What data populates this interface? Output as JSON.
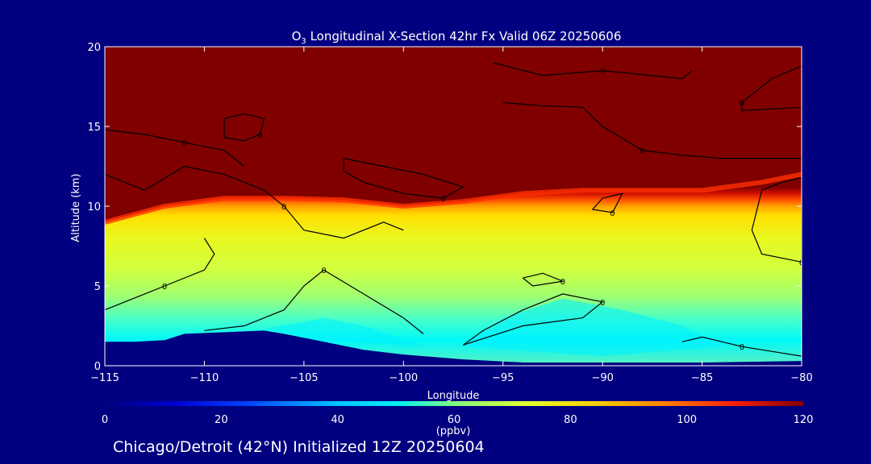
{
  "title": {
    "prefix": "O",
    "subscript": "3",
    "rest": " Longitudinal X-Section 42hr  Fx Valid 06Z 20250606"
  },
  "footer": "Chicago/Detroit (42°N) Initialized 12Z 20250604",
  "colorbar": {
    "unit_label": "(ppbv)",
    "min": 0,
    "max": 120,
    "ticks": [
      "0",
      "20",
      "40",
      "60",
      "80",
      "100",
      "120"
    ]
  },
  "colors": {
    "background": "#000080",
    "terrain": "#000080",
    "contour": "#000000",
    "axes_text": "#ffffff"
  },
  "chart_data": {
    "type": "heatmap",
    "variable": "O3",
    "xlabel": "Longitude",
    "ylabel": "Altitude (km)",
    "xlim": [
      -115,
      -80
    ],
    "ylim": [
      0,
      20
    ],
    "x_ticks": [
      -115,
      -110,
      -105,
      -100,
      -95,
      -90,
      -85,
      -80
    ],
    "x_tick_labels": [
      "−115",
      "−110",
      "−105",
      "−100",
      "−95",
      "−90",
      "−85",
      "−80"
    ],
    "y_ticks": [
      0,
      5,
      10,
      15,
      20
    ],
    "y_tick_labels": [
      "0",
      "5",
      "10",
      "15",
      "20"
    ],
    "colorbar_range": [
      0,
      120
    ],
    "tropopause": [
      {
        "lon": -115,
        "alt": 9.0
      },
      {
        "lon": -112,
        "alt": 10.0
      },
      {
        "lon": -109,
        "alt": 10.5
      },
      {
        "lon": -106,
        "alt": 10.5
      },
      {
        "lon": -103,
        "alt": 10.4
      },
      {
        "lon": -100,
        "alt": 10.0
      },
      {
        "lon": -97,
        "alt": 10.3
      },
      {
        "lon": -94,
        "alt": 10.8
      },
      {
        "lon": -91,
        "alt": 11.0
      },
      {
        "lon": -88,
        "alt": 11.0
      },
      {
        "lon": -85,
        "alt": 11.0
      },
      {
        "lon": -82,
        "alt": 11.5
      },
      {
        "lon": -80,
        "alt": 12.0
      }
    ],
    "terrain": [
      {
        "lon": -115,
        "alt": 1.5
      },
      {
        "lon": -113.5,
        "alt": 1.5
      },
      {
        "lon": -112,
        "alt": 1.6
      },
      {
        "lon": -111,
        "alt": 2.0
      },
      {
        "lon": -109,
        "alt": 2.1
      },
      {
        "lon": -107,
        "alt": 2.2
      },
      {
        "lon": -106,
        "alt": 2.0
      },
      {
        "lon": -104,
        "alt": 1.5
      },
      {
        "lon": -102,
        "alt": 1.0
      },
      {
        "lon": -100,
        "alt": 0.7
      },
      {
        "lon": -97,
        "alt": 0.4
      },
      {
        "lon": -94,
        "alt": 0.2
      },
      {
        "lon": -90,
        "alt": 0.2
      },
      {
        "lon": -85,
        "alt": 0.2
      },
      {
        "lon": -80,
        "alt": 0.3
      }
    ],
    "contours": [
      {
        "label": "0",
        "points": [
          [
            -115,
            12.0
          ],
          [
            -113,
            11.0
          ],
          [
            -111,
            12.5
          ],
          [
            -109,
            12.0
          ],
          [
            -107,
            11.0
          ],
          [
            -106,
            10.0
          ],
          [
            -105,
            8.5
          ],
          [
            -103,
            8.0
          ],
          [
            -101,
            9.0
          ],
          [
            -100,
            8.5
          ]
        ]
      },
      {
        "label": "0",
        "points": [
          [
            -109,
            15.5
          ],
          [
            -108,
            15.8
          ],
          [
            -107,
            15.5
          ],
          [
            -107.2,
            14.5
          ],
          [
            -108,
            14.1
          ],
          [
            -109,
            14.3
          ],
          [
            -109,
            15.5
          ]
        ]
      },
      {
        "label": "0",
        "points": [
          [
            -103,
            13.0
          ],
          [
            -101,
            12.5
          ],
          [
            -99,
            12.0
          ],
          [
            -97,
            11.2
          ],
          [
            -98,
            10.5
          ],
          [
            -100,
            10.8
          ],
          [
            -102,
            11.5
          ],
          [
            -103,
            12.2
          ],
          [
            -103,
            13.0
          ]
        ]
      },
      {
        "label": "0",
        "points": [
          [
            -115,
            3.5
          ],
          [
            -114,
            4.0
          ],
          [
            -113,
            4.5
          ],
          [
            -112,
            5.0
          ],
          [
            -110,
            6.0
          ],
          [
            -109.5,
            7.0
          ],
          [
            -110,
            8.0
          ]
        ]
      },
      {
        "label": "0",
        "points": [
          [
            -110,
            2.2
          ],
          [
            -108,
            2.5
          ],
          [
            -106,
            3.5
          ],
          [
            -105,
            5.0
          ],
          [
            -104,
            6.0
          ],
          [
            -102,
            4.5
          ],
          [
            -100,
            3.0
          ],
          [
            -99,
            2.0
          ]
        ]
      },
      {
        "label": "0",
        "points": [
          [
            -97,
            1.3
          ],
          [
            -96,
            2.2
          ],
          [
            -94,
            3.5
          ],
          [
            -92,
            4.5
          ],
          [
            -90,
            4.0
          ],
          [
            -91,
            3.0
          ],
          [
            -94,
            2.5
          ],
          [
            -97,
            1.3
          ]
        ]
      },
      {
        "label": "0",
        "points": [
          [
            -94,
            5.5
          ],
          [
            -93,
            5.8
          ],
          [
            -92,
            5.3
          ],
          [
            -93.5,
            5.0
          ],
          [
            -94,
            5.5
          ]
        ]
      },
      {
        "label": "0",
        "points": [
          [
            -86,
            1.5
          ],
          [
            -85,
            1.8
          ],
          [
            -84,
            1.5
          ],
          [
            -83,
            1.2
          ],
          [
            -81,
            0.8
          ],
          [
            -80,
            0.6
          ]
        ]
      },
      {
        "label": "0",
        "points": [
          [
            -82,
            11.0
          ],
          [
            -81,
            11.5
          ],
          [
            -80,
            11.8
          ],
          [
            -80,
            6.5
          ],
          [
            -82,
            7.0
          ],
          [
            -82.5,
            8.5
          ],
          [
            -82,
            11.0
          ]
        ]
      },
      {
        "label": "0",
        "points": [
          [
            -90,
            10.5
          ],
          [
            -89,
            10.8
          ],
          [
            -89.5,
            9.6
          ],
          [
            -90.5,
            9.8
          ],
          [
            -90,
            10.5
          ]
        ]
      },
      {
        "label": "0",
        "points": [
          [
            -95.5,
            19.0
          ],
          [
            -93,
            18.2
          ],
          [
            -90,
            18.5
          ],
          [
            -86,
            18.0
          ],
          [
            -85.5,
            18.5
          ]
        ]
      },
      {
        "label": "0",
        "points": [
          [
            -115,
            14.8
          ],
          [
            -113,
            14.5
          ],
          [
            -111,
            14.0
          ],
          [
            -109,
            13.5
          ],
          [
            -108,
            12.5
          ]
        ]
      },
      {
        "label": "0",
        "points": [
          [
            -80,
            18.8
          ],
          [
            -81.5,
            18.0
          ],
          [
            -83,
            16.5
          ],
          [
            -83,
            16.0
          ],
          [
            -80,
            16.2
          ]
        ]
      },
      {
        "label": "0",
        "points": [
          [
            -95,
            16.5
          ],
          [
            -93,
            16.3
          ],
          [
            -91,
            16.2
          ],
          [
            -90,
            15.0
          ],
          [
            -88,
            13.5
          ],
          [
            -86,
            13.2
          ],
          [
            -84,
            13.0
          ],
          [
            -82,
            13.0
          ],
          [
            -80,
            13.0
          ]
        ]
      }
    ]
  }
}
